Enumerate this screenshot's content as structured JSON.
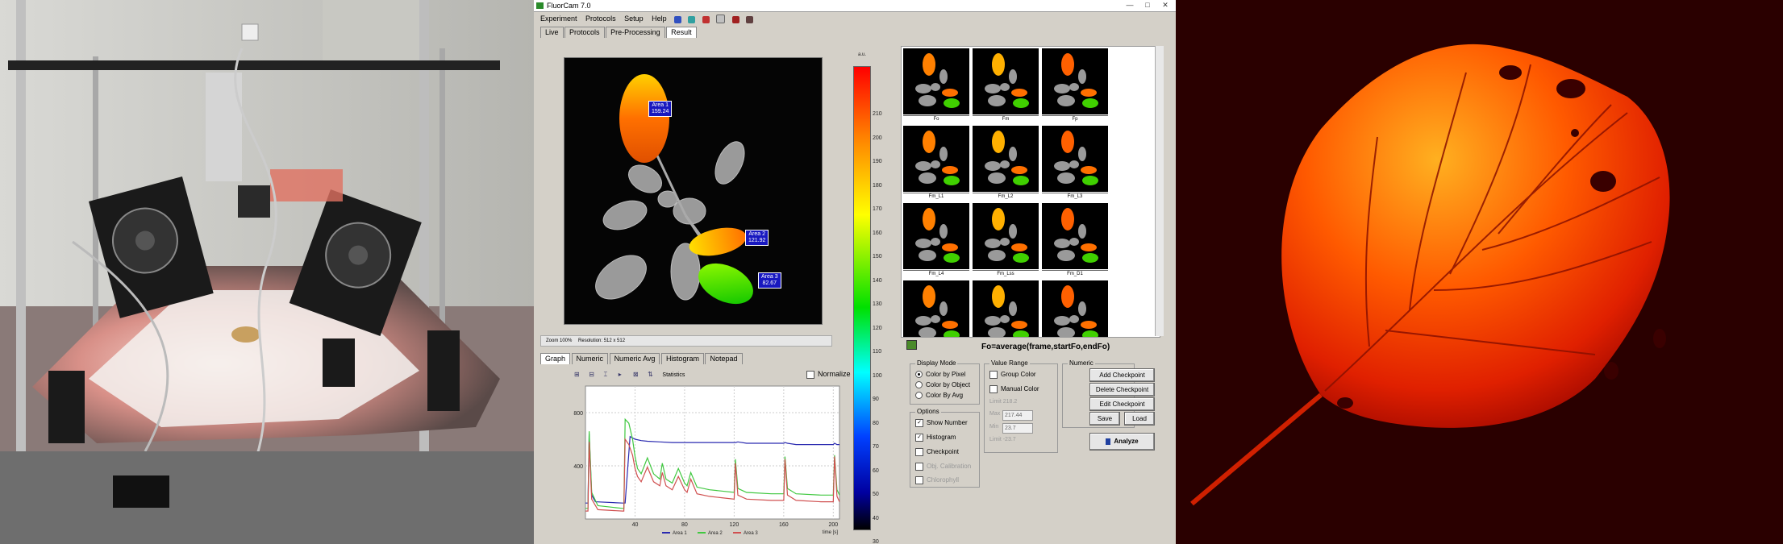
{
  "app": {
    "title": "FluorCam 7.0",
    "window_buttons": [
      "—",
      "□",
      "✕"
    ],
    "menu": [
      "Experiment",
      "Protocols",
      "Setup",
      "Help"
    ],
    "toolbar_icons": [
      "rect-tool-icon",
      "ellipse-tool-icon",
      "flask-icon",
      "gauge-icon",
      "camera-icon",
      "plant-icon"
    ],
    "tabs": [
      "Live",
      "Protocols",
      "Pre-Processing",
      "Result"
    ],
    "active_tab": "Result",
    "areas": [
      {
        "label": "Area 1",
        "value": "159.24"
      },
      {
        "label": "Area 2",
        "value": "121.92"
      },
      {
        "label": "Area 3",
        "value": "82.67"
      }
    ],
    "status": {
      "zoom": "Zoom 100%",
      "resolution": "Resolution: 512 x 512"
    },
    "colorbar": {
      "unit": "a.u.",
      "ticks": [
        "210",
        "200",
        "190",
        "180",
        "170",
        "160",
        "150",
        "140",
        "130",
        "120",
        "110",
        "100",
        "90",
        "80",
        "70",
        "60",
        "50",
        "40",
        "30"
      ]
    },
    "thumbnails": [
      "Fo",
      "Fm",
      "Fp",
      "Fm_L1",
      "Fm_L2",
      "Fm_L3",
      "Fm_L4",
      "Fm_Lss",
      "Fm_D1",
      "",
      "",
      ""
    ],
    "formula": "Fo=average(frame,startFo,endFo)",
    "graph_tabs": [
      "Graph",
      "Numeric",
      "Numeric Avg",
      "Histogram",
      "Notepad"
    ],
    "graph_toolbar_statistics": "Statistics",
    "normalize_label": "Normalize",
    "display_mode": {
      "title": "Display Mode",
      "options": [
        "Color by Pixel",
        "Color by Object",
        "Color By Avg"
      ],
      "selected": 0
    },
    "options": {
      "title": "Options",
      "items": [
        {
          "label": "Show Number",
          "checked": true,
          "enabled": true
        },
        {
          "label": "Histogram",
          "checked": true,
          "enabled": true
        },
        {
          "label": "Checkpoint",
          "checked": false,
          "enabled": true
        },
        {
          "label": "Obj. Calibration",
          "checked": false,
          "enabled": false
        },
        {
          "label": "Chlorophyll",
          "checked": false,
          "enabled": false
        }
      ]
    },
    "value_range": {
      "title": "Value Range",
      "group_color": "Group Color",
      "manual_color": "Manual Color",
      "limit_top": "Limit  218.2",
      "max_label": "Max",
      "max_value": "217.44",
      "min_label": "Min",
      "min_value": "23.7",
      "limit_bottom": "Limit  -23.7"
    },
    "numeric": {
      "title": "Numeric",
      "buttons": [
        "Add Checkpoint",
        "Delete Checkpoint",
        "Edit Checkpoint"
      ],
      "save": "Save",
      "load": "Load",
      "analyze": "Analyze"
    },
    "chart": {
      "type": "line",
      "y_ticks": [
        "800",
        "400"
      ],
      "y_ticks_values": [
        800,
        400
      ],
      "ylim": [
        0,
        1000
      ],
      "x_ticks": [
        "40",
        "80",
        "120",
        "160",
        "200"
      ],
      "x_ticks_values": [
        40,
        80,
        120,
        160,
        200
      ],
      "xlim": [
        0,
        205
      ],
      "xlabel": "time [s]",
      "legend": [
        "Area 1",
        "Area 2",
        "Area 3"
      ],
      "colors": [
        "#2a2ab0",
        "#40c840",
        "#d05050"
      ],
      "series": [
        {
          "name": "Area 1",
          "x": [
            0,
            2,
            3,
            5,
            8,
            30,
            31,
            32,
            36,
            40,
            45,
            50,
            60,
            70,
            80,
            90,
            100,
            110,
            120,
            121,
            123,
            130,
            150,
            160,
            161,
            163,
            170,
            190,
            200,
            201,
            203,
            205
          ],
          "y": [
            120,
            120,
            640,
            180,
            130,
            120,
            120,
            120,
            620,
            600,
            590,
            585,
            580,
            575,
            575,
            575,
            575,
            575,
            575,
            575,
            580,
            570,
            570,
            570,
            575,
            570,
            560,
            560,
            560,
            570,
            560,
            560
          ]
        },
        {
          "name": "Area 2",
          "x": [
            0,
            2,
            3,
            5,
            10,
            30,
            31,
            32,
            35,
            38,
            40,
            42,
            45,
            50,
            55,
            60,
            62,
            65,
            70,
            75,
            80,
            82,
            85,
            90,
            100,
            110,
            120,
            121,
            123,
            130,
            150,
            160,
            161,
            163,
            170,
            190,
            200,
            201,
            203,
            205
          ],
          "y": [
            80,
            80,
            660,
            200,
            100,
            80,
            80,
            750,
            720,
            600,
            470,
            380,
            340,
            460,
            340,
            300,
            420,
            300,
            270,
            380,
            270,
            250,
            350,
            240,
            220,
            210,
            200,
            450,
            230,
            200,
            190,
            190,
            470,
            230,
            190,
            180,
            180,
            480,
            220,
            180
          ]
        },
        {
          "name": "Area 3",
          "x": [
            0,
            2,
            3,
            5,
            10,
            30,
            31,
            32,
            35,
            38,
            40,
            42,
            45,
            50,
            55,
            60,
            62,
            65,
            70,
            75,
            80,
            82,
            85,
            90,
            100,
            110,
            120,
            121,
            123,
            130,
            150,
            160,
            161,
            163,
            170,
            190,
            200,
            201,
            203,
            205
          ],
          "y": [
            60,
            60,
            580,
            150,
            70,
            60,
            60,
            600,
            560,
            480,
            380,
            320,
            280,
            390,
            280,
            250,
            350,
            250,
            220,
            320,
            220,
            200,
            300,
            190,
            170,
            160,
            150,
            420,
            180,
            150,
            140,
            140,
            450,
            180,
            140,
            130,
            130,
            470,
            170,
            130
          ]
        }
      ]
    }
  },
  "colors": {
    "app_bg": "#d4d0c8",
    "leaf_bg": "#2a0000",
    "photo_bg": "#4a4a48"
  }
}
